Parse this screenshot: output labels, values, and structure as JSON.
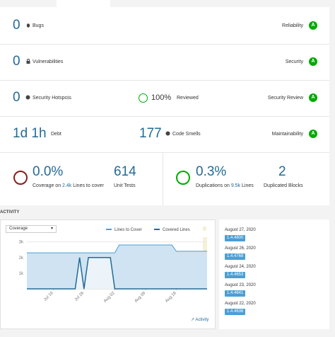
{
  "measures": {
    "bugs": {
      "value": "0",
      "label": "Bugs",
      "rating_label": "Reliability",
      "rating": "A"
    },
    "vulnerabilities": {
      "value": "0",
      "label": "Vulnerabilities",
      "rating_label": "Security",
      "rating": "A"
    },
    "hotspots": {
      "value": "0",
      "label": "Security Hotspots",
      "reviewed_value": "100%",
      "reviewed_label": "Reviewed",
      "rating_label": "Security Review",
      "rating": "A"
    },
    "debt": {
      "value": "1d 1h",
      "label": "Debt",
      "smells_value": "177",
      "smells_label": "Code Smells",
      "rating_label": "Maintainability",
      "rating": "A"
    },
    "coverage": {
      "value": "0.0%",
      "label_prefix": "Coverage on",
      "lines": "2.4k",
      "label_suffix": "Lines to cover",
      "tests_value": "614",
      "tests_label": "Unit Tests"
    },
    "duplications": {
      "value": "0.3%",
      "label_prefix": "Duplications on",
      "lines": "9.5k",
      "label_suffix": "Lines",
      "blocks_value": "2",
      "blocks_label": "Duplicated Blocks"
    }
  },
  "activity": {
    "title": "ACTIVITY",
    "metric_select": "Coverage",
    "link": "Activity",
    "versions": [
      {
        "date": "August 27, 2020",
        "version": "1.4.4800"
      },
      {
        "date": "August 26, 2020",
        "version": "1.4.4768"
      },
      {
        "date": "August 24, 2020",
        "version": "1.4.4653"
      },
      {
        "date": "August 23, 2020",
        "version": "1.4.4641"
      },
      {
        "date": "August 22, 2020",
        "version": "1.4.4636"
      }
    ]
  },
  "chart_data": {
    "type": "line",
    "x": [
      "Jul 13",
      "Jul 24",
      "Jul 25",
      "Jul 26",
      "Jul 27",
      "Aug 01",
      "Aug 02",
      "Aug 03",
      "Aug 15",
      "Aug 16",
      "Aug 23"
    ],
    "series": [
      {
        "name": "Lines to Cover",
        "color": "#4b9fd5",
        "values": [
          2300,
          2300,
          2300,
          2300,
          2300,
          2300,
          2300,
          2800,
          2800,
          2400,
          2400
        ]
      },
      {
        "name": "Covered Lines",
        "color": "#236a97",
        "values": [
          0,
          0,
          2000,
          0,
          2000,
          2000,
          0,
          0,
          0,
          0,
          0
        ]
      }
    ],
    "xlim": [
      "Jul 13",
      "Aug 23"
    ],
    "xticks": [
      "Jul 19",
      "Jul 26",
      "Aug 02",
      "Aug 09",
      "Aug 16"
    ],
    "ylim": [
      0,
      3300
    ],
    "yticks": [
      {
        "value": 1000,
        "label": "1k"
      },
      {
        "value": 2000,
        "label": "2k"
      },
      {
        "value": 3000,
        "label": "3k"
      }
    ],
    "grid": true
  }
}
